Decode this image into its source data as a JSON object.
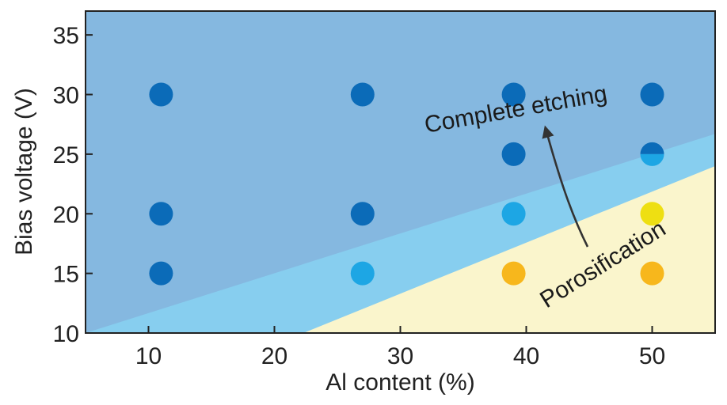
{
  "chart_data": {
    "type": "scatter",
    "xlabel": "Al content (%)",
    "ylabel": "Bias voltage (V)",
    "xlim": [
      5,
      55
    ],
    "ylim": [
      10,
      37
    ],
    "xticks": [
      10,
      20,
      30,
      40,
      50
    ],
    "yticks": [
      10,
      15,
      20,
      25,
      30,
      35
    ],
    "regions": [
      {
        "label": "Complete etching",
        "color": "#85B8E0"
      },
      {
        "label": "",
        "color": "#87CEEF"
      },
      {
        "label": "Porosification",
        "color": "#FAF5CC"
      }
    ],
    "boundaries": [
      {
        "between": [
          "Complete etching",
          "intermediate"
        ],
        "points": [
          [
            5,
            10
          ],
          [
            55,
            26.7
          ]
        ]
      },
      {
        "between": [
          "intermediate",
          "Porosification"
        ],
        "points": [
          [
            22.3,
            10
          ],
          [
            55,
            24
          ]
        ]
      }
    ],
    "points": [
      {
        "x": 11,
        "y": 30,
        "color": "#0B6BB8"
      },
      {
        "x": 27,
        "y": 30,
        "color": "#0B6BB8"
      },
      {
        "x": 39,
        "y": 30,
        "color": "#0B6BB8"
      },
      {
        "x": 50,
        "y": 30,
        "color": "#0B6BB8"
      },
      {
        "x": 39,
        "y": 25,
        "color": "#0B6BB8"
      },
      {
        "x": 50,
        "y": 25,
        "color": "#0B6BB8",
        "color2": "#1DA6E4",
        "split": true
      },
      {
        "x": 11,
        "y": 20,
        "color": "#0B6BB8"
      },
      {
        "x": 27,
        "y": 20,
        "color": "#0B6BB8"
      },
      {
        "x": 39,
        "y": 20,
        "color": "#1DA6E4"
      },
      {
        "x": 50,
        "y": 20,
        "color": "#EEDF12"
      },
      {
        "x": 11,
        "y": 15,
        "color": "#0B6BB8"
      },
      {
        "x": 27,
        "y": 15,
        "color": "#1DA6E4"
      },
      {
        "x": 39,
        "y": 15,
        "color": "#F7B71C"
      },
      {
        "x": 50,
        "y": 15,
        "color": "#F7B71C"
      }
    ],
    "annotations": [
      {
        "text": "Complete etching",
        "arrow": true
      },
      {
        "text": "Porosification"
      }
    ]
  }
}
